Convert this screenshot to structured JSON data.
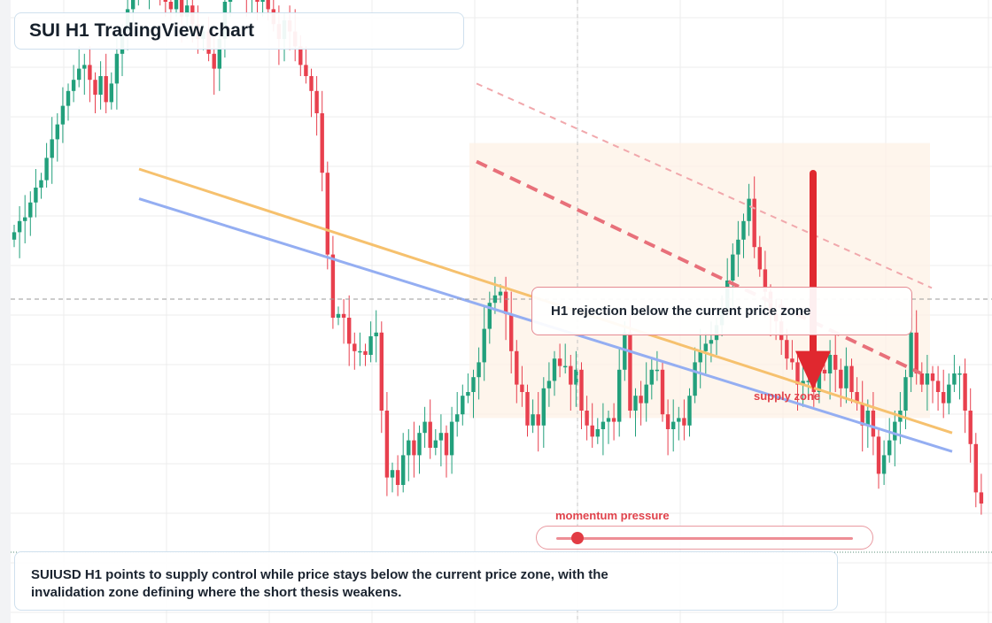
{
  "title": "SUI H1 TradingView chart",
  "callout": {
    "text": "H1 rejection below the current price zone"
  },
  "zone_label": "supply zone",
  "momentum": {
    "label": "momentum pressure",
    "level": 0.07
  },
  "summary": {
    "line1": "SUIUSD H1 points to supply control while price stays below the current price zone, with the",
    "line2": "invalidation zone defining where the short thesis weakens."
  },
  "colors": {
    "bull": "#22a07c",
    "bear": "#e8404e",
    "accent_red": "#e0282f",
    "ema_orange": "#f6c16e",
    "ema_blue": "#94aef2",
    "zone_fill": "#fdf1e6",
    "grid": "#ececec"
  },
  "icons": {
    "down_arrow": "arrow-down-icon"
  },
  "chart_data": {
    "type": "candlestick",
    "symbol": "SUIUSD",
    "timeframe": "H1",
    "grid": true,
    "price_axis_visible": false,
    "series": [
      {
        "name": "close",
        "values": [
          18,
          21,
          22,
          26,
          30,
          32,
          38,
          43,
          47,
          52,
          56,
          59,
          62,
          63,
          59,
          55,
          60,
          53,
          58,
          66,
          72,
          78,
          82,
          86,
          85,
          89,
          87,
          84,
          80,
          78,
          82,
          76,
          79,
          74,
          70,
          72,
          66,
          62,
          70,
          80,
          84,
          92,
          87,
          83,
          86,
          80,
          82,
          78,
          74,
          70,
          75,
          72,
          68,
          63,
          60,
          56,
          50,
          34,
          12,
          -5,
          -4,
          -5,
          -12,
          -14,
          -14,
          -15,
          -10,
          -9,
          -30,
          -48,
          -46,
          -50,
          -42,
          -38,
          -42,
          -36,
          -33,
          -40,
          -38,
          -36,
          -42,
          -33,
          -31,
          -26,
          -25,
          -21,
          -17,
          -8,
          -1,
          1,
          2,
          -4,
          -14,
          -23,
          -25,
          -34,
          -31,
          -34,
          -24,
          -22,
          -16,
          -18,
          -18,
          -23,
          -19,
          -30,
          -34,
          -37,
          -35,
          -33,
          -32,
          -33,
          -19,
          -9,
          -30,
          -26,
          -28,
          -23,
          -19,
          -19,
          -31,
          -35,
          -33,
          -32,
          -34,
          -26,
          -17,
          -14,
          -12,
          -11,
          -7,
          -3,
          5,
          12,
          16,
          21,
          27,
          14,
          8,
          2,
          -4,
          -6,
          -11,
          -16,
          -17,
          -23,
          -22,
          -22,
          -25,
          -19,
          -20,
          -15,
          -19,
          -24,
          -18,
          -25,
          -28,
          -34,
          -30,
          -37,
          -47,
          -42,
          -38,
          -33,
          -30,
          -21,
          -9,
          -20,
          -23,
          -20,
          -22,
          -25,
          -28,
          -23,
          -20,
          -20,
          -30,
          -39,
          -52,
          -55
        ]
      }
    ],
    "ema_fast": {
      "start": 0.35,
      "end": -0.36
    },
    "ema_slow": {
      "start": 0.27,
      "end": -0.41
    },
    "projection_lines": [
      {
        "start": 0.58,
        "end": 0.03
      },
      {
        "start": 0.37,
        "end": -0.2
      }
    ],
    "zone": {
      "top": 0.42,
      "bottom": -0.32
    },
    "current_price_level": 0.0,
    "target_level": -0.23
  }
}
